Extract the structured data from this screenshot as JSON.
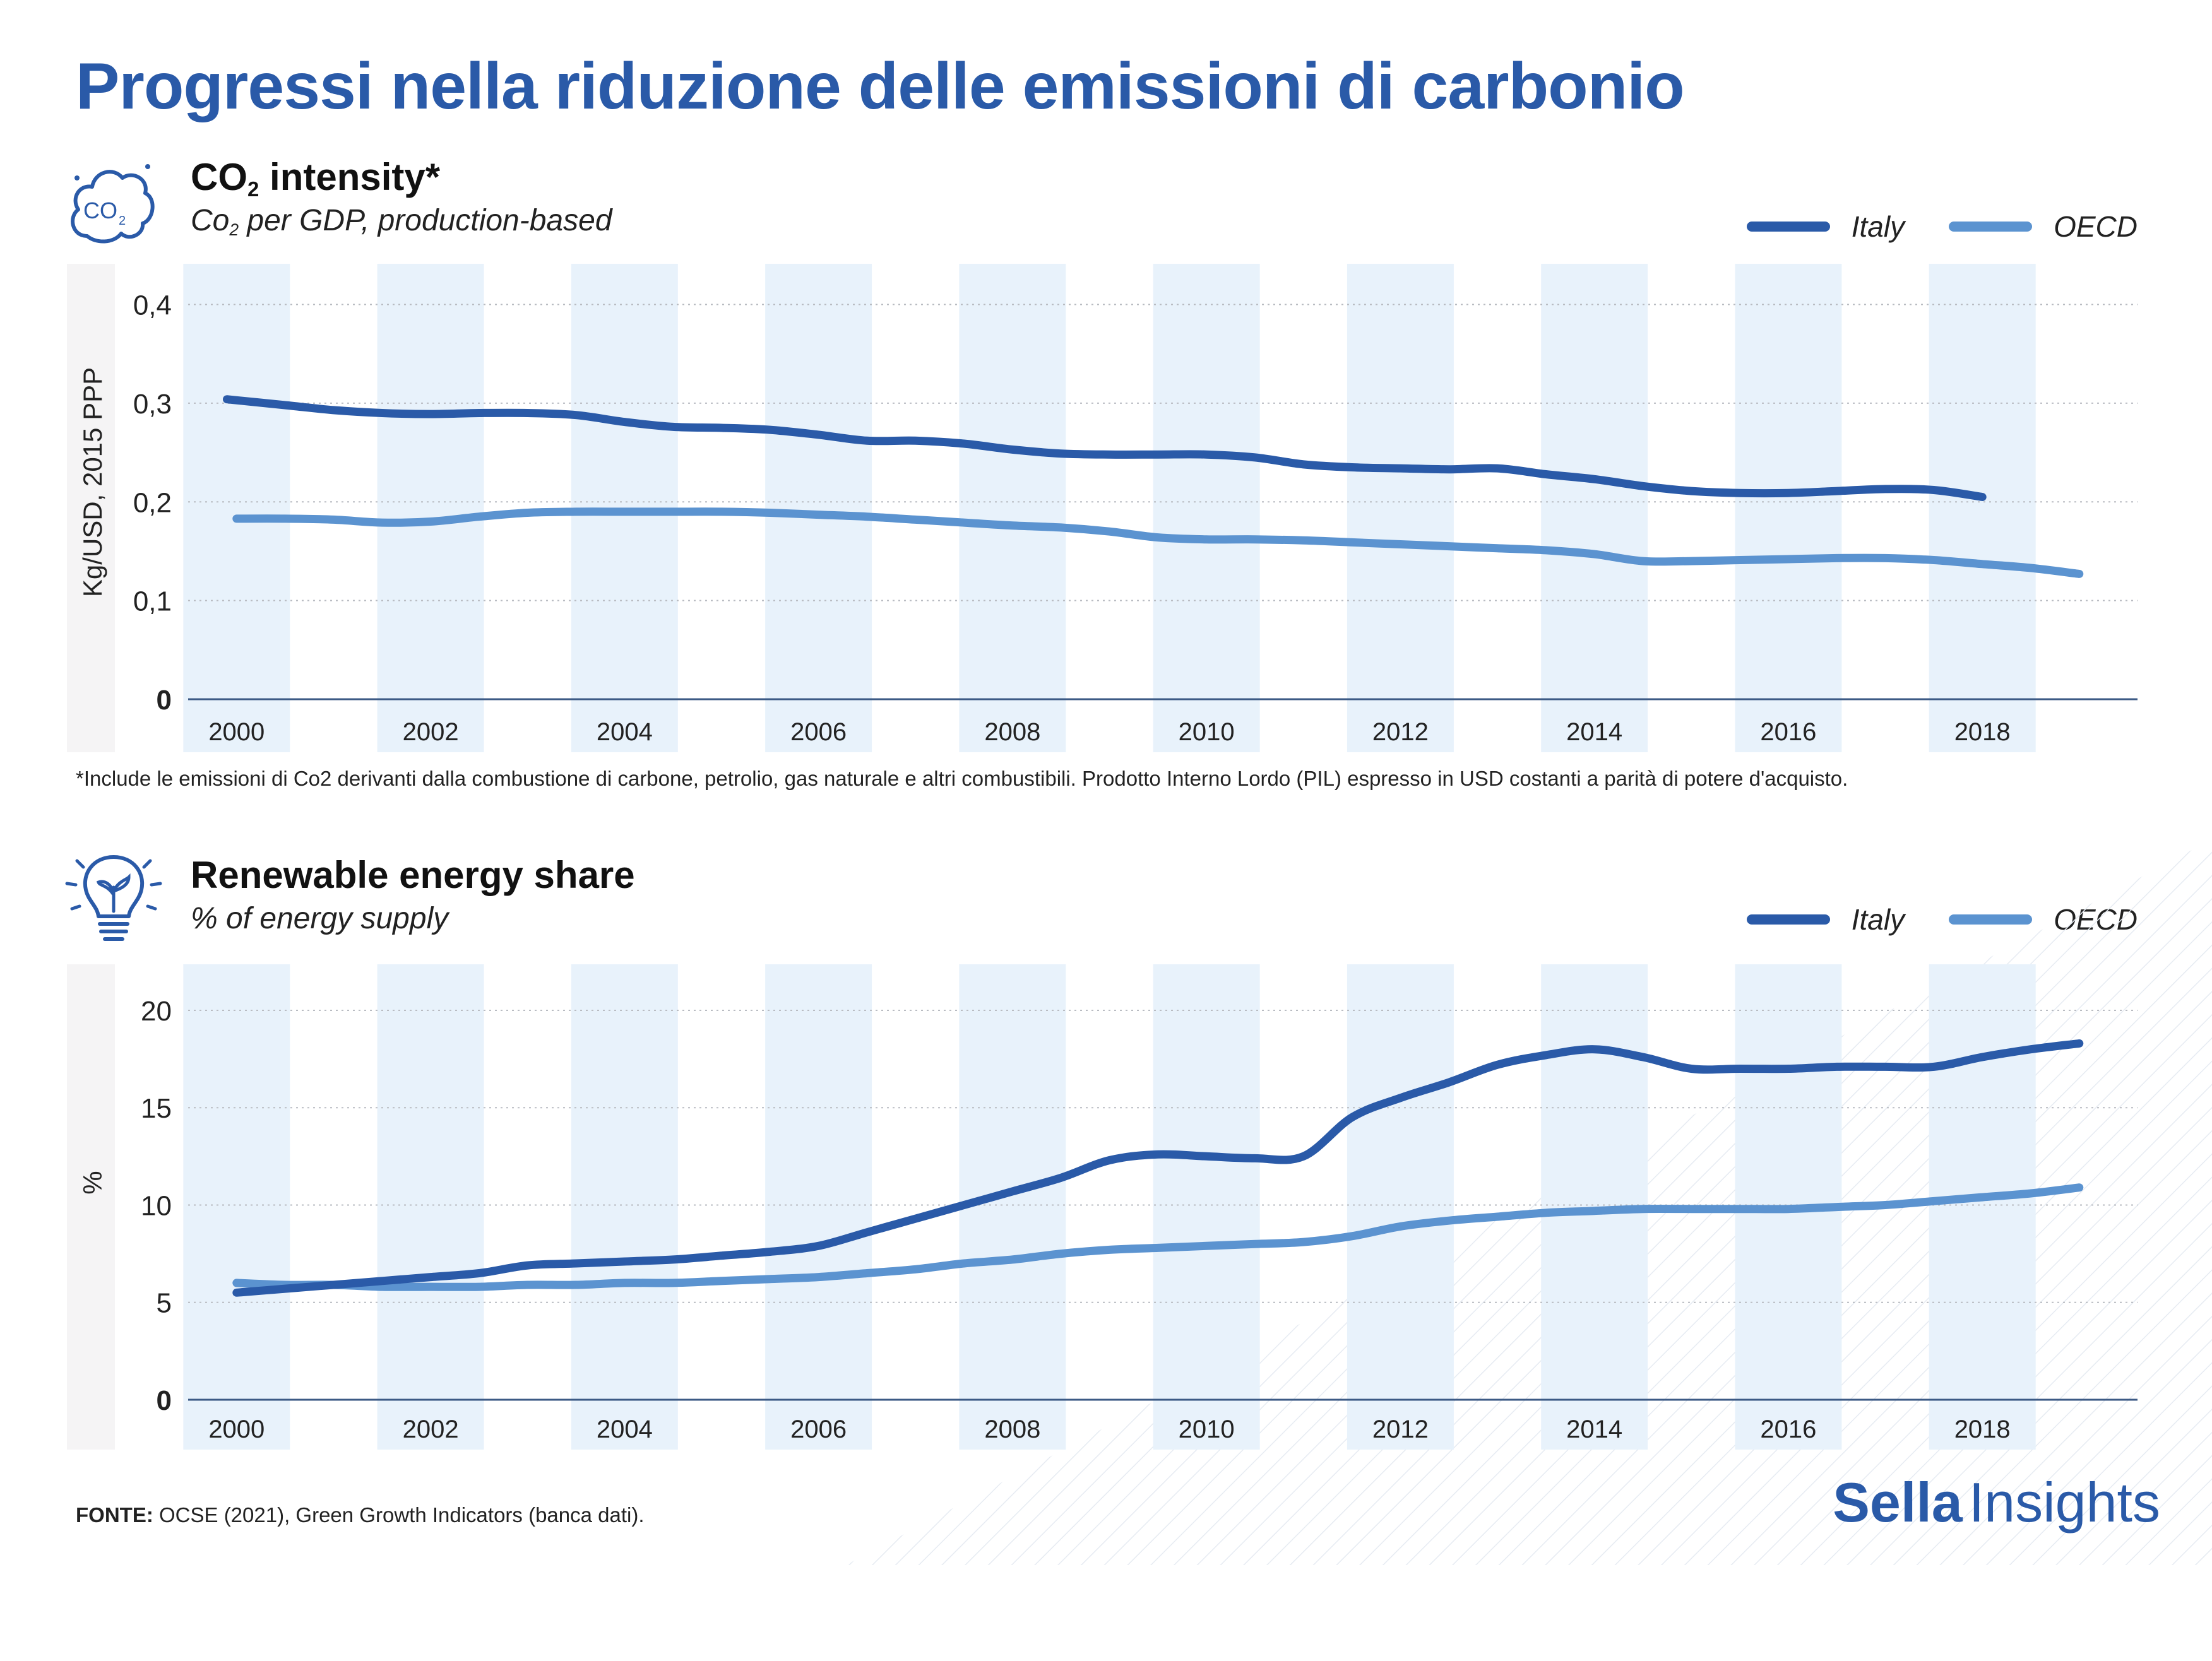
{
  "page": {
    "title": "Progressi nella riduzione delle emissioni di carbonio",
    "footnote": "*Include le emissioni di Co2 derivanti dalla combustione di carbone, petrolio, gas naturale e altri combustibili. Prodotto Interno Lordo (PIL) espresso in USD costanti a parità di potere d'acquisto.",
    "source_label": "FONTE:",
    "source_text": "OCSE (2021), Green Growth Indicators (banca dati).",
    "brand_bold": "Sella",
    "brand_regular": "Insights",
    "accent_color": "#2a5aa8",
    "icons": [
      "co2-cloud-icon",
      "lightbulb-plant-icon"
    ]
  },
  "charts": {
    "co2": {
      "title_main": "CO",
      "title_sub": "2",
      "title_rest": " intensity*",
      "subtitle_main": "Co",
      "subtitle_sub": "2",
      "subtitle_rest": " per GDP, production-based"
    },
    "renewable": {
      "title": "Renewable energy share",
      "subtitle": "% of energy supply"
    }
  },
  "chart_data": [
    {
      "type": "line",
      "ylabel": "Kg/USD, 2015 PPP",
      "ylim": [
        0,
        0.44
      ],
      "xlim": [
        1999.5,
        2019.6
      ],
      "yticks": [
        0,
        0.1,
        0.2,
        0.3,
        0.4
      ],
      "ytick_labels": [
        "0",
        "0,1",
        "0,2",
        "0,3",
        "0,4"
      ],
      "xticks": [
        2000,
        2002,
        2004,
        2006,
        2008,
        2010,
        2012,
        2014,
        2016,
        2018
      ],
      "xtick_labels": [
        "2000",
        "2002",
        "2004",
        "2006",
        "2008",
        "2010",
        "2012",
        "2014",
        "2016",
        "2018"
      ],
      "grid": "horizontal dotted",
      "legend": "top-right",
      "series": [
        {
          "name": "Italy",
          "color": "#2a5aa8",
          "x": [
            1999.9,
            2000.5,
            2001,
            2001.5,
            2002,
            2002.5,
            2003,
            2003.5,
            2004,
            2004.5,
            2005,
            2005.5,
            2006,
            2006.5,
            2007,
            2007.5,
            2008,
            2008.5,
            2009,
            2009.5,
            2010,
            2010.5,
            2011,
            2011.5,
            2012,
            2012.5,
            2013,
            2013.5,
            2014,
            2014.5,
            2015,
            2015.5,
            2016,
            2016.5,
            2017,
            2017.5,
            2018
          ],
          "values": [
            0.304,
            0.298,
            0.293,
            0.29,
            0.289,
            0.29,
            0.29,
            0.288,
            0.281,
            0.276,
            0.275,
            0.273,
            0.268,
            0.262,
            0.262,
            0.259,
            0.253,
            0.249,
            0.248,
            0.248,
            0.248,
            0.245,
            0.238,
            0.235,
            0.234,
            0.233,
            0.234,
            0.228,
            0.223,
            0.216,
            0.211,
            0.209,
            0.209,
            0.211,
            0.213,
            0.212,
            0.205
          ]
        },
        {
          "name": "OECD",
          "color": "#5b93d0",
          "x": [
            2000,
            2000.5,
            2001,
            2001.5,
            2002,
            2002.5,
            2003,
            2003.5,
            2004,
            2004.5,
            2005,
            2005.5,
            2006,
            2006.5,
            2007,
            2007.5,
            2008,
            2008.5,
            2009,
            2009.5,
            2010,
            2010.5,
            2011,
            2011.5,
            2012,
            2012.5,
            2013,
            2013.5,
            2014,
            2014.5,
            2015,
            2015.5,
            2016,
            2016.5,
            2017,
            2017.5,
            2018,
            2018.5,
            2019
          ],
          "values": [
            0.183,
            0.183,
            0.182,
            0.179,
            0.18,
            0.185,
            0.189,
            0.19,
            0.19,
            0.19,
            0.19,
            0.189,
            0.187,
            0.185,
            0.182,
            0.179,
            0.176,
            0.174,
            0.17,
            0.164,
            0.162,
            0.162,
            0.161,
            0.159,
            0.157,
            0.155,
            0.153,
            0.151,
            0.147,
            0.14,
            0.14,
            0.141,
            0.142,
            0.143,
            0.143,
            0.141,
            0.137,
            0.133,
            0.127
          ]
        }
      ]
    },
    {
      "type": "line",
      "ylabel": "%",
      "ylim": [
        0,
        22.3
      ],
      "xlim": [
        1999.5,
        2019.6
      ],
      "yticks": [
        0,
        5,
        10,
        15,
        20
      ],
      "ytick_labels": [
        "0",
        "5",
        "10",
        "15",
        "20"
      ],
      "xticks": [
        2000,
        2002,
        2004,
        2006,
        2008,
        2010,
        2012,
        2014,
        2016,
        2018
      ],
      "xtick_labels": [
        "2000",
        "2002",
        "2004",
        "2006",
        "2008",
        "2010",
        "2012",
        "2014",
        "2016",
        "2018"
      ],
      "grid": "horizontal dotted",
      "legend": "top-right",
      "series": [
        {
          "name": "Italy",
          "color": "#2a5aa8",
          "x": [
            2000,
            2000.5,
            2001,
            2001.5,
            2002,
            2002.5,
            2003,
            2003.5,
            2004,
            2004.5,
            2005,
            2005.5,
            2006,
            2006.5,
            2007,
            2007.5,
            2008,
            2008.5,
            2009,
            2009.5,
            2010,
            2010.5,
            2011,
            2011.5,
            2012,
            2012.5,
            2013,
            2013.5,
            2014,
            2014.5,
            2015,
            2015.5,
            2016,
            2016.5,
            2017,
            2017.5,
            2018,
            2018.5,
            2019
          ],
          "values": [
            5.5,
            5.7,
            5.9,
            6.1,
            6.3,
            6.5,
            6.9,
            7.0,
            7.1,
            7.2,
            7.4,
            7.6,
            7.9,
            8.6,
            9.3,
            10.0,
            10.7,
            11.4,
            12.3,
            12.6,
            12.5,
            12.4,
            12.5,
            14.5,
            15.5,
            16.3,
            17.2,
            17.7,
            18.0,
            17.6,
            17.0,
            17.0,
            17.0,
            17.1,
            17.1,
            17.1,
            17.6,
            18.0,
            18.3
          ]
        },
        {
          "name": "OECD",
          "color": "#5b93d0",
          "x": [
            2000,
            2000.5,
            2001,
            2001.5,
            2002,
            2002.5,
            2003,
            2003.5,
            2004,
            2004.5,
            2005,
            2005.5,
            2006,
            2006.5,
            2007,
            2007.5,
            2008,
            2008.5,
            2009,
            2009.5,
            2010,
            2010.5,
            2011,
            2011.5,
            2012,
            2012.5,
            2013,
            2013.5,
            2014,
            2014.5,
            2015,
            2015.5,
            2016,
            2016.5,
            2017,
            2017.5,
            2018,
            2018.5,
            2019
          ],
          "values": [
            6.0,
            5.9,
            5.9,
            5.8,
            5.8,
            5.8,
            5.9,
            5.9,
            6.0,
            6.0,
            6.1,
            6.2,
            6.3,
            6.5,
            6.7,
            7.0,
            7.2,
            7.5,
            7.7,
            7.8,
            7.9,
            8.0,
            8.1,
            8.4,
            8.9,
            9.2,
            9.4,
            9.6,
            9.7,
            9.8,
            9.8,
            9.8,
            9.8,
            9.9,
            10.0,
            10.2,
            10.4,
            10.6,
            10.9
          ]
        }
      ]
    }
  ]
}
